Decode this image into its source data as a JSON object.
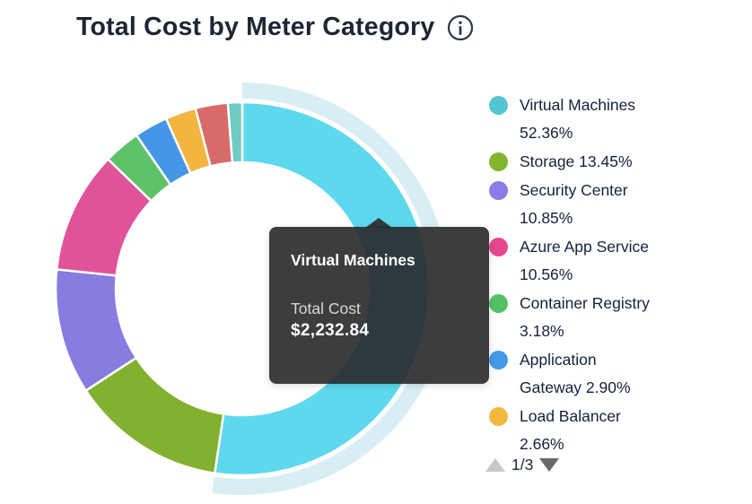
{
  "header": {
    "title": "Total Cost by Meter Category"
  },
  "chart_data": {
    "type": "donut",
    "title": "Total Cost by Meter Category",
    "value_unit": "percent",
    "start_angle_deg": 0,
    "direction": "clockwise",
    "legend_position": "right",
    "inner_radius_ratio": 0.68,
    "highlighted_slice": "Virtual Machines",
    "highlight_halo_color": "#d9eef4",
    "slices": [
      {
        "label": "Virtual Machines",
        "percent": 52.36,
        "color": "#5ed8ec",
        "highlighted": true
      },
      {
        "label": "Storage",
        "percent": 13.45,
        "color": "#82b02f"
      },
      {
        "label": "Security Center",
        "percent": 10.85,
        "color": "#887ce0"
      },
      {
        "label": "Azure App Service",
        "percent": 10.56,
        "color": "#e0539b"
      },
      {
        "label": "Container Registry",
        "percent": 3.18,
        "color": "#5ec268"
      },
      {
        "label": "Application Gateway",
        "percent": 2.9,
        "color": "#4596e8"
      },
      {
        "label": "Load Balancer",
        "percent": 2.66,
        "color": "#f1b540"
      },
      {
        "label": "",
        "percent": 2.8,
        "color": "#d96a6a"
      },
      {
        "label": "",
        "percent": 1.24,
        "color": "#6fccc2"
      }
    ]
  },
  "legend": {
    "items": [
      {
        "color": "#54c5d0",
        "lines": [
          "Virtual Machines",
          "52.36%"
        ]
      },
      {
        "color": "#81b62e",
        "lines": [
          "Storage 13.45%"
        ]
      },
      {
        "color": "#8a7ce5",
        "lines": [
          "Security Center",
          "10.85%"
        ]
      },
      {
        "color": "#e5488f",
        "lines": [
          "Azure App Service",
          "10.56%"
        ]
      },
      {
        "color": "#55c167",
        "lines": [
          "Container Registry",
          "3.18%"
        ]
      },
      {
        "color": "#4499e8",
        "lines": [
          "Application",
          "Gateway 2.90%"
        ]
      },
      {
        "color": "#f4b63f",
        "lines": [
          "Load Balancer",
          "2.66%"
        ]
      }
    ],
    "pagination": {
      "label": "1/3"
    }
  },
  "tooltip": {
    "title": "Virtual Machines",
    "metric_label": "Total Cost",
    "metric_value": "$2,232.84"
  }
}
